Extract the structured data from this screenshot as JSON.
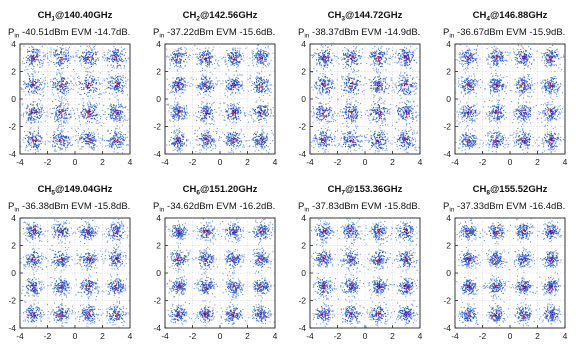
{
  "chart_data": [
    {
      "type": "scatter",
      "title": "CH1@140.40GHz",
      "ch": "1",
      "freq": "@140.40GHz",
      "pin_label": "P",
      "pin_sub": "in",
      "pin_power": " -40.51dBm",
      "evm": " EVM -14.7dB.",
      "xlim": [
        -4,
        4
      ],
      "ylim": [
        -4,
        4
      ],
      "xticks": [
        "-4",
        "-2",
        "0",
        "2",
        "4"
      ],
      "yticks": [
        "4",
        "2",
        "0",
        "-2",
        "-4"
      ],
      "constellation": "16-QAM",
      "ideal_levels": [
        -3,
        -1,
        1,
        3
      ],
      "spread": 0.42
    },
    {
      "type": "scatter",
      "title": "CH2@142.56GHz",
      "ch": "2",
      "freq": "@142.56GHz",
      "pin_label": "P",
      "pin_sub": "in",
      "pin_power": " -37.22dBm",
      "evm": " EVM -15.6dB.",
      "xlim": [
        -4,
        4
      ],
      "ylim": [
        -4,
        4
      ],
      "xticks": [
        "-4",
        "-2",
        "0",
        "2",
        "4"
      ],
      "yticks": [
        "4",
        "2",
        "0",
        "-2",
        "-4"
      ],
      "constellation": "16-QAM",
      "ideal_levels": [
        -3,
        -1,
        1,
        3
      ],
      "spread": 0.37
    },
    {
      "type": "scatter",
      "title": "CH3@144.72GHz",
      "ch": "3",
      "freq": "@144.72GHz",
      "pin_label": "P",
      "pin_sub": "in",
      "pin_power": " -38.37dBm",
      "evm": " EVM -14.9dB.",
      "xlim": [
        -4,
        4
      ],
      "ylim": [
        -4,
        4
      ],
      "xticks": [
        "-4",
        "-2",
        "0",
        "2",
        "4"
      ],
      "yticks": [
        "4",
        "2",
        "0",
        "-2",
        "-4"
      ],
      "constellation": "16-QAM",
      "ideal_levels": [
        -3,
        -1,
        1,
        3
      ],
      "spread": 0.41
    },
    {
      "type": "scatter",
      "title": "CH4@146.88GHz",
      "ch": "4",
      "freq": "@146.88GHz",
      "pin_label": "P",
      "pin_sub": "in",
      "pin_power": " -36.67dBm",
      "evm": " EVM -15.9dB.",
      "xlim": [
        -4,
        4
      ],
      "ylim": [
        -4,
        4
      ],
      "xticks": [
        "-4",
        "-2",
        "0",
        "2",
        "4"
      ],
      "yticks": [
        "4",
        "2",
        "0",
        "-2",
        "-4"
      ],
      "constellation": "16-QAM",
      "ideal_levels": [
        -3,
        -1,
        1,
        3
      ],
      "spread": 0.36
    },
    {
      "type": "scatter",
      "title": "CH5@149.04GHz",
      "ch": "5",
      "freq": "@149.04GHz",
      "pin_label": "P",
      "pin_sub": "in",
      "pin_power": " -36.38dBm",
      "evm": " EVM -15.8dB.",
      "xlim": [
        -4,
        4
      ],
      "ylim": [
        -4,
        4
      ],
      "xticks": [
        "-4",
        "-2",
        "0",
        "2",
        "4"
      ],
      "yticks": [
        "4",
        "2",
        "0",
        "-2",
        "-4"
      ],
      "constellation": "16-QAM",
      "ideal_levels": [
        -3,
        -1,
        1,
        3
      ],
      "spread": 0.36
    },
    {
      "type": "scatter",
      "title": "CH6@151.20GHz",
      "ch": "6",
      "freq": "@151.20GHz",
      "pin_label": "P",
      "pin_sub": "in",
      "pin_power": " -34.62dBm",
      "evm": " EVM -16.2dB.",
      "xlim": [
        -4,
        4
      ],
      "ylim": [
        -4,
        4
      ],
      "xticks": [
        "-4",
        "-2",
        "0",
        "2",
        "4"
      ],
      "yticks": [
        "4",
        "2",
        "0",
        "-2",
        "-4"
      ],
      "constellation": "16-QAM",
      "ideal_levels": [
        -3,
        -1,
        1,
        3
      ],
      "spread": 0.34
    },
    {
      "type": "scatter",
      "title": "CH7@153.36GHz",
      "ch": "7",
      "freq": "@153.36GHz",
      "pin_label": "P",
      "pin_sub": "in",
      "pin_power": " -37.83dBm",
      "evm": " EVM -15.8dB.",
      "xlim": [
        -4,
        4
      ],
      "ylim": [
        -4,
        4
      ],
      "xticks": [
        "-4",
        "-2",
        "0",
        "2",
        "4"
      ],
      "yticks": [
        "4",
        "2",
        "0",
        "-2",
        "-4"
      ],
      "constellation": "16-QAM",
      "ideal_levels": [
        -3,
        -1,
        1,
        3
      ],
      "spread": 0.36
    },
    {
      "type": "scatter",
      "title": "CH8@155.52GHz",
      "ch": "8",
      "freq": "@155.52GHz",
      "pin_label": "P",
      "pin_sub": "in",
      "pin_power": " -37.33dBm",
      "evm": " EVM -16.4dB.",
      "xlim": [
        -4,
        4
      ],
      "ylim": [
        -4,
        4
      ],
      "xticks": [
        "-4",
        "-2",
        "0",
        "2",
        "4"
      ],
      "yticks": [
        "4",
        "2",
        "0",
        "-2",
        "-4"
      ],
      "constellation": "16-QAM",
      "ideal_levels": [
        -3,
        -1,
        1,
        3
      ],
      "spread": 0.33
    }
  ],
  "colors": {
    "points": "#2f5ad6",
    "points_dense": "#3b1fb0",
    "points_light": "#6f9ae8",
    "frame": "#222222",
    "grid": "#c9cfda"
  }
}
